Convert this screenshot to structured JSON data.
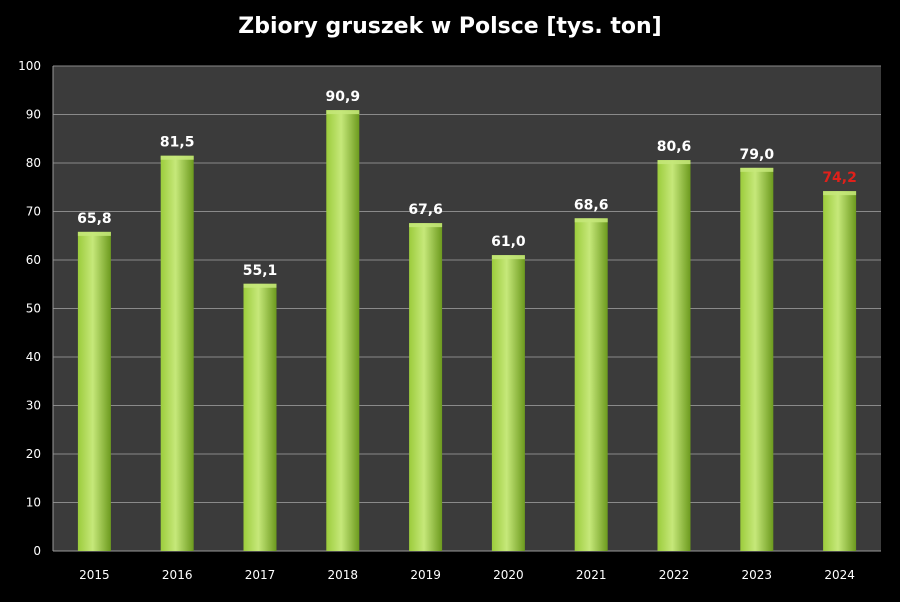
{
  "chart_data": {
    "type": "bar",
    "title": "Zbiory gruszek w Polsce [tys. ton]",
    "xlabel": "",
    "ylabel": "",
    "categories": [
      "2015",
      "2016",
      "2017",
      "2018",
      "2019",
      "2020",
      "2021",
      "2022",
      "2023",
      "2024"
    ],
    "values": [
      65.8,
      81.5,
      55.1,
      90.9,
      67.6,
      61.0,
      68.6,
      80.6,
      79.0,
      74.2
    ],
    "value_labels": [
      "65,8",
      "81,5",
      "55,1",
      "90,9",
      "67,6",
      "61,0",
      "68,6",
      "80,6",
      "79,0",
      "74,2"
    ],
    "highlight_index": 9,
    "ylim": [
      0,
      100
    ],
    "yticks": [
      0,
      10,
      20,
      30,
      40,
      50,
      60,
      70,
      80,
      90,
      100
    ],
    "grid": true,
    "legend": "none",
    "colors": {
      "background": "#000000",
      "plot_area": "#3b3b3b",
      "grid": "#8a8a8a",
      "bar_light": "#c6e87a",
      "bar_mid": "#9ccc3c",
      "bar_dark": "#6c9a1e",
      "label_default": "#ffffff",
      "label_highlight": "#e0201a",
      "text": "#ffffff"
    }
  }
}
